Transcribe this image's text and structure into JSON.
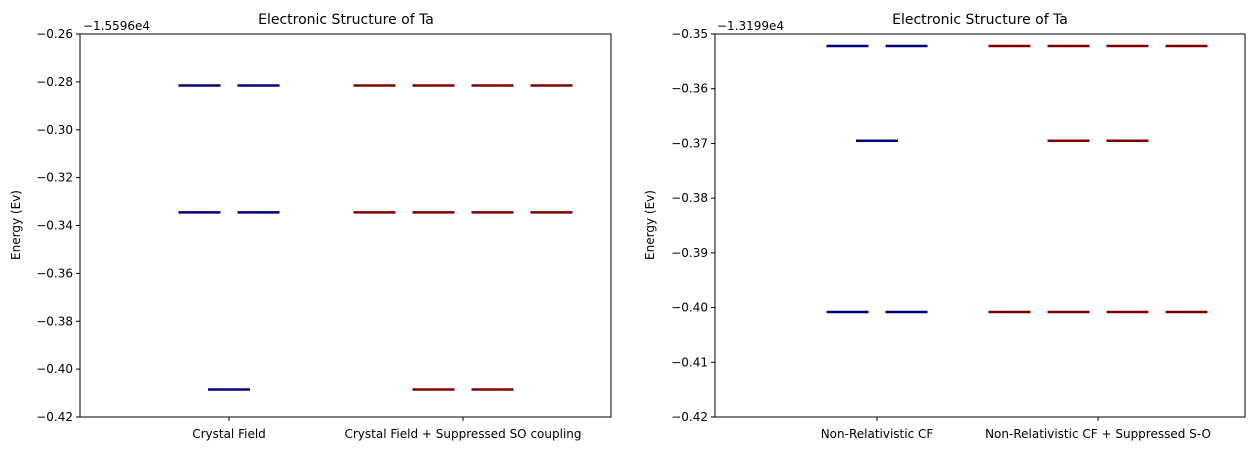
{
  "chart_data": [
    {
      "type": "line",
      "title": "Electronic Structure of Ta",
      "xlabel": "",
      "ylabel": "Energy (Ev)",
      "y_offset_label": "−1.5596e4",
      "ylim": [
        -0.42,
        -0.26
      ],
      "yticks": [
        -0.26,
        -0.28,
        -0.3,
        -0.32,
        -0.34,
        -0.36,
        -0.38,
        -0.4,
        -0.42
      ],
      "ytick_labels": [
        "−0.26",
        "−0.28",
        "−0.30",
        "−0.32",
        "−0.34",
        "−0.36",
        "−0.38",
        "−0.40",
        "−0.42"
      ],
      "grid": false,
      "categories": [
        "Crystal Field",
        "Crystal Field + Suppressed SO coupling"
      ],
      "groups": [
        {
          "category": "Crystal Field",
          "color": "#00007f",
          "levels": [
            {
              "energy": -0.2815,
              "count": 2
            },
            {
              "energy": -0.3345,
              "count": 2
            },
            {
              "energy": -0.4085,
              "count": 1
            }
          ]
        },
        {
          "category": "Crystal Field + Suppressed SO coupling",
          "color": "#7f0000",
          "levels": [
            {
              "energy": -0.2815,
              "count": 4
            },
            {
              "energy": -0.3345,
              "count": 4
            },
            {
              "energy": -0.4085,
              "count": 2
            }
          ]
        }
      ]
    },
    {
      "type": "line",
      "title": "Electronic Structure of Ta",
      "xlabel": "",
      "ylabel": "Energy (Ev)",
      "y_offset_label": "−1.3199e4",
      "ylim": [
        -0.42,
        -0.35
      ],
      "yticks": [
        -0.35,
        -0.36,
        -0.37,
        -0.38,
        -0.39,
        -0.4,
        -0.41,
        -0.42
      ],
      "ytick_labels": [
        "−0.35",
        "−0.36",
        "−0.37",
        "−0.38",
        "−0.39",
        "−0.40",
        "−0.41",
        "−0.42"
      ],
      "grid": false,
      "categories": [
        "Non-Relativistic CF",
        "Non-Relativistic CF + Suppressed S-O"
      ],
      "groups": [
        {
          "category": "Non-Relativistic CF",
          "color": "#00007f",
          "levels": [
            {
              "energy": -0.3522,
              "count": 2
            },
            {
              "energy": -0.3695,
              "count": 1
            },
            {
              "energy": -0.4008,
              "count": 2
            }
          ]
        },
        {
          "category": "Non-Relativistic CF + Suppressed S-O",
          "color": "#7f0000",
          "levels": [
            {
              "energy": -0.3522,
              "count": 4
            },
            {
              "energy": -0.3695,
              "count": 2
            },
            {
              "energy": -0.4008,
              "count": 4
            }
          ]
        }
      ]
    }
  ]
}
